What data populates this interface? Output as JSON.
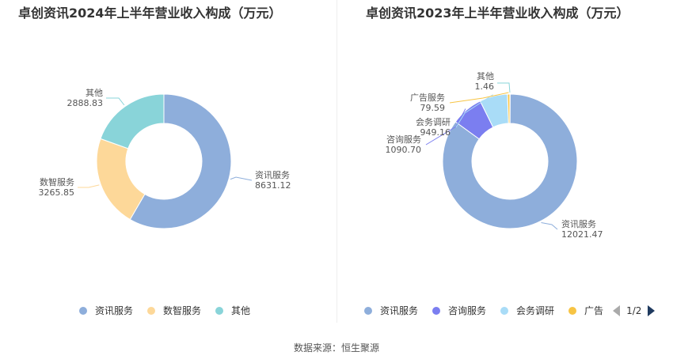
{
  "chart_data": [
    {
      "type": "pie",
      "donut": true,
      "title": "卓创资讯2024年上半年营业收入构成（万元）",
      "slices": [
        {
          "label": "资讯服务",
          "value": 8631.12,
          "value_text": "8631.12",
          "color": "#8eaedb"
        },
        {
          "label": "数智服务",
          "value": 3265.85,
          "value_text": "3265.85",
          "color": "#fdd899"
        },
        {
          "label": "其他",
          "value": 2888.83,
          "value_text": "2888.83",
          "color": "#89d4d9"
        }
      ],
      "legend": [
        "资讯服务",
        "数智服务",
        "其他"
      ],
      "legend_position": "bottom"
    },
    {
      "type": "pie",
      "donut": true,
      "title": "卓创资讯2023年上半年营业收入构成（万元）",
      "slices": [
        {
          "label": "资讯服务",
          "value": 12021.47,
          "value_text": "12021.47",
          "color": "#8eaedb"
        },
        {
          "label": "咨询服务",
          "value": 1090.7,
          "value_text": "1090.70",
          "color": "#7b7ef0"
        },
        {
          "label": "会务调研",
          "value": 949.16,
          "value_text": "949.16",
          "color": "#a9dcf7"
        },
        {
          "label": "广告服务",
          "value": 79.59,
          "value_text": "79.59",
          "color": "#f7c444"
        },
        {
          "label": "其他",
          "value": 1.46,
          "value_text": "1.46",
          "color": "#89d4d9"
        }
      ],
      "legend": [
        "资讯服务",
        "咨询服务",
        "会务调研",
        "广告"
      ],
      "legend_position": "bottom",
      "pager": "1/2"
    }
  ],
  "source": "数据来源：恒生聚源"
}
